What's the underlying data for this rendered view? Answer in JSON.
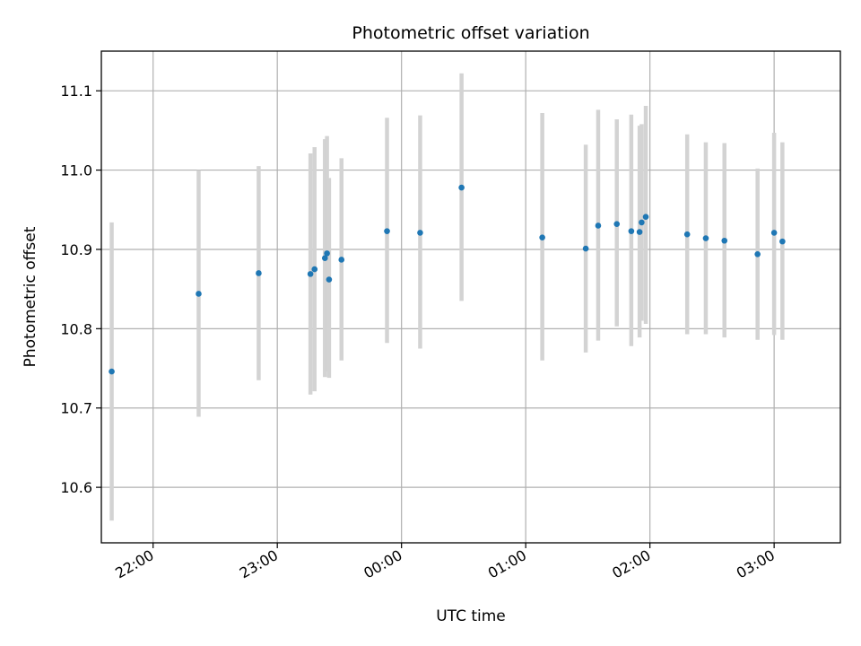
{
  "chart_data": {
    "type": "scatter",
    "title": "Photometric offset variation",
    "xlabel": "UTC time",
    "ylabel": "Photometric offset",
    "x_is_time": true,
    "xlim": [
      "21:35",
      "03:32"
    ],
    "ylim": [
      10.53,
      11.15
    ],
    "x_ticks": [
      "22:00",
      "23:00",
      "00:00",
      "01:00",
      "02:00",
      "03:00"
    ],
    "y_ticks": [
      10.6,
      10.7,
      10.8,
      10.9,
      11.0,
      11.1
    ],
    "grid": true,
    "point_color": "#1f77b4",
    "errorbar_color": "#d3d3d3",
    "points": [
      {
        "x": "21:40",
        "y": 10.746,
        "ylo": 10.558,
        "yhi": 10.934
      },
      {
        "x": "22:22",
        "y": 10.844,
        "ylo": 10.689,
        "yhi": 11.0
      },
      {
        "x": "22:51",
        "y": 10.87,
        "ylo": 10.735,
        "yhi": 11.005
      },
      {
        "x": "23:16",
        "y": 10.869,
        "ylo": 10.717,
        "yhi": 11.021
      },
      {
        "x": "23:18",
        "y": 10.875,
        "ylo": 10.721,
        "yhi": 11.029
      },
      {
        "x": "23:23",
        "y": 10.889,
        "ylo": 10.739,
        "yhi": 11.039
      },
      {
        "x": "23:24",
        "y": 10.895,
        "ylo": 10.746,
        "yhi": 11.043
      },
      {
        "x": "23:25",
        "y": 10.862,
        "ylo": 10.738,
        "yhi": 10.99
      },
      {
        "x": "23:31",
        "y": 10.887,
        "ylo": 10.76,
        "yhi": 11.015
      },
      {
        "x": "23:53",
        "y": 10.923,
        "ylo": 10.782,
        "yhi": 11.066
      },
      {
        "x": "00:09",
        "y": 10.921,
        "ylo": 10.775,
        "yhi": 11.069
      },
      {
        "x": "00:29",
        "y": 10.978,
        "ylo": 10.835,
        "yhi": 11.122
      },
      {
        "x": "01:08",
        "y": 10.915,
        "ylo": 10.76,
        "yhi": 11.072
      },
      {
        "x": "01:29",
        "y": 10.901,
        "ylo": 10.77,
        "yhi": 11.032
      },
      {
        "x": "01:35",
        "y": 10.93,
        "ylo": 10.785,
        "yhi": 11.076
      },
      {
        "x": "01:44",
        "y": 10.932,
        "ylo": 10.803,
        "yhi": 11.064
      },
      {
        "x": "01:51",
        "y": 10.923,
        "ylo": 10.778,
        "yhi": 11.07
      },
      {
        "x": "01:55",
        "y": 10.922,
        "ylo": 10.789,
        "yhi": 11.056
      },
      {
        "x": "01:56",
        "y": 10.934,
        "ylo": 10.81,
        "yhi": 11.058
      },
      {
        "x": "01:58",
        "y": 10.941,
        "ylo": 10.806,
        "yhi": 11.081
      },
      {
        "x": "02:18",
        "y": 10.919,
        "ylo": 10.793,
        "yhi": 11.045
      },
      {
        "x": "02:27",
        "y": 10.914,
        "ylo": 10.793,
        "yhi": 11.035
      },
      {
        "x": "02:36",
        "y": 10.911,
        "ylo": 10.789,
        "yhi": 11.034
      },
      {
        "x": "02:52",
        "y": 10.894,
        "ylo": 10.786,
        "yhi": 11.002
      },
      {
        "x": "03:00",
        "y": 10.921,
        "ylo": 10.792,
        "yhi": 11.047
      },
      {
        "x": "03:04",
        "y": 10.91,
        "ylo": 10.786,
        "yhi": 11.035
      }
    ]
  }
}
